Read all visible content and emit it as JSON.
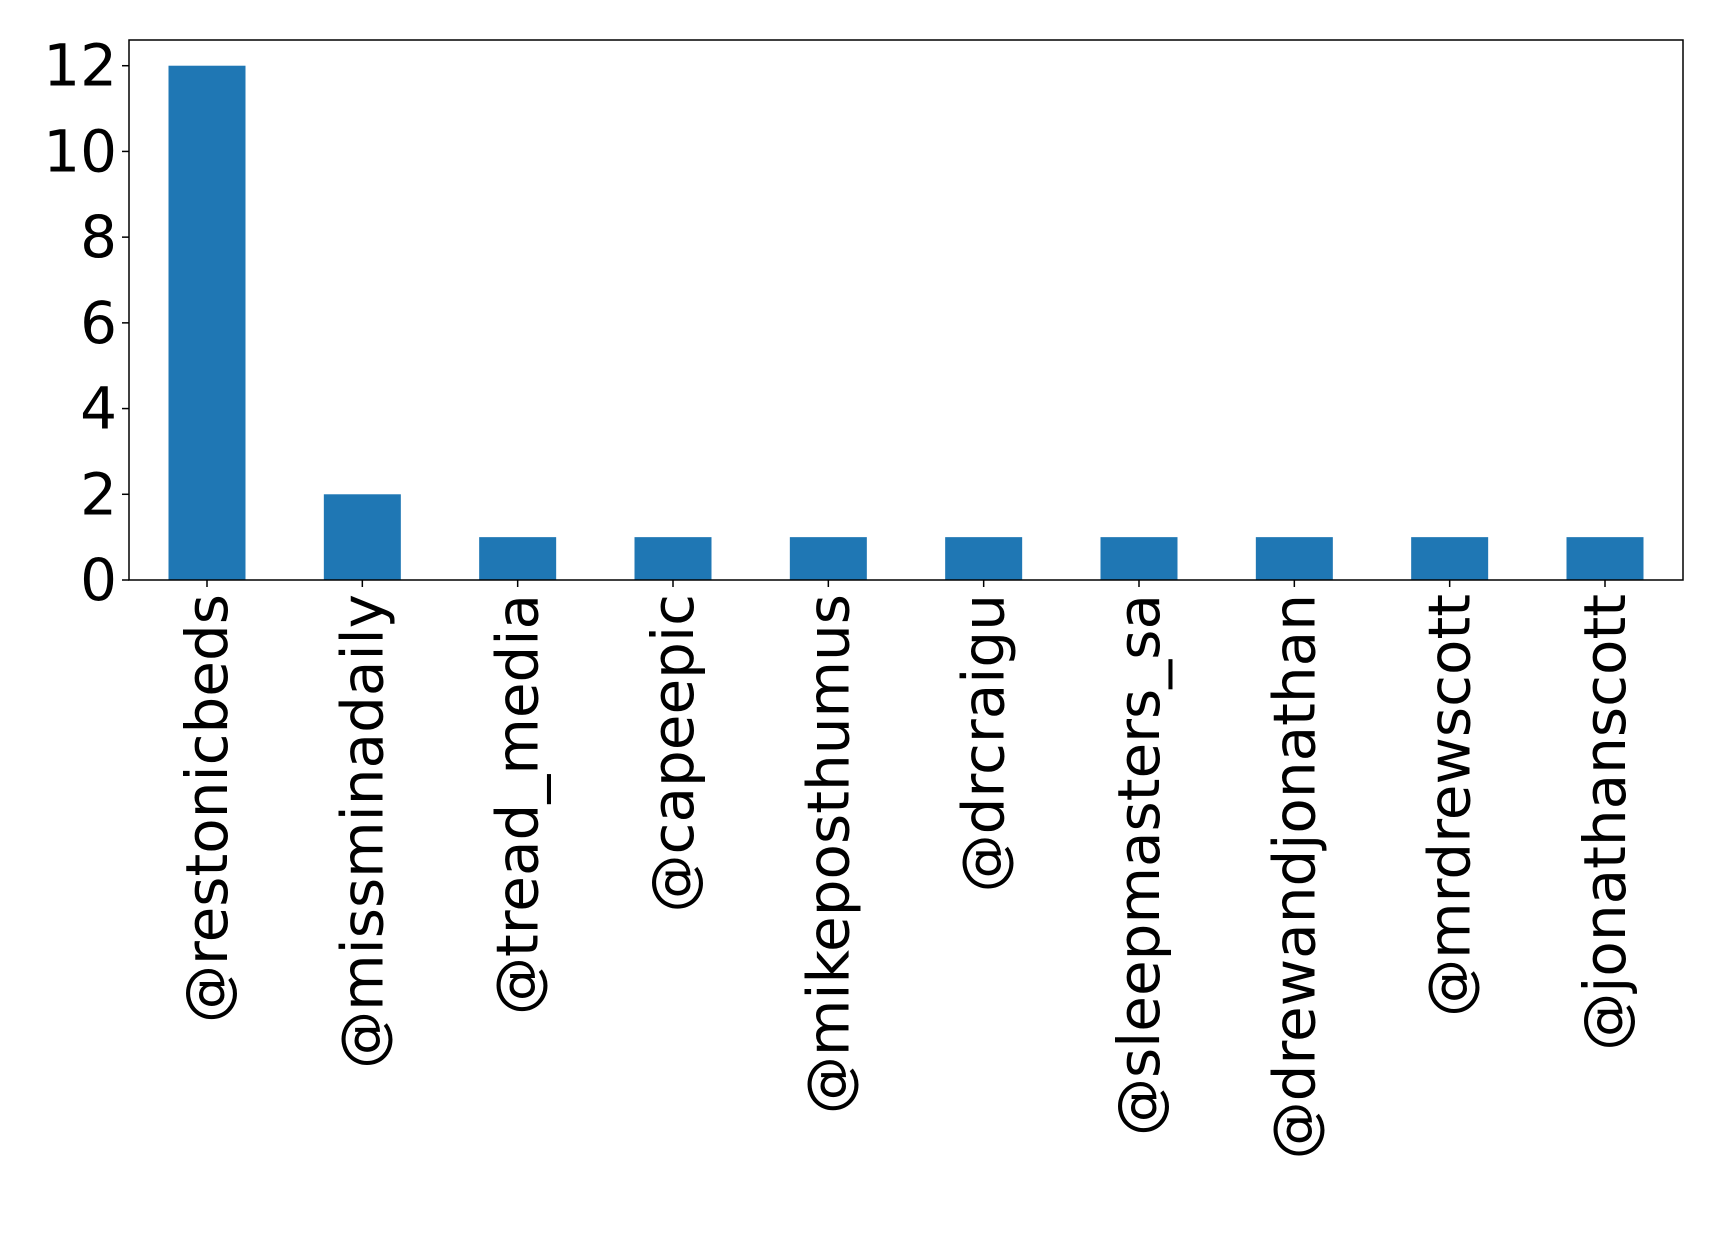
{
  "chart_data": {
    "type": "bar",
    "categories": [
      "@restonicbeds",
      "@missminadaily",
      "@tread_media",
      "@capeepic",
      "@mikeposthumus",
      "@drcraigu",
      "@sleepmasters_sa",
      "@drewandjonathan",
      "@mrdrewscott",
      "@jonathanscott"
    ],
    "values": [
      12,
      2,
      1,
      1,
      1,
      1,
      1,
      1,
      1,
      1
    ],
    "yticks": [
      "0",
      "2",
      "4",
      "6",
      "8",
      "10",
      "12"
    ],
    "ylim": [
      0,
      12.6
    ],
    "grid": false,
    "bar_color": "#1f77b4",
    "axis_color": "#000000"
  }
}
